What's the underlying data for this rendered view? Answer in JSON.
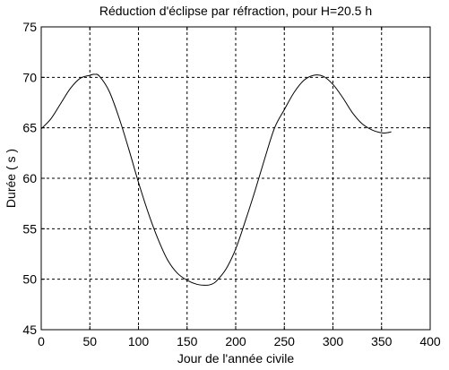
{
  "chart_data": {
    "type": "line",
    "title": "Réduction d'éclipse par réfraction, pour H=20.5 h",
    "xlabel": "Jour de l'année civile",
    "ylabel": "Durée ( s )",
    "xlim": [
      0,
      400
    ],
    "ylim": [
      45,
      75
    ],
    "xticks": [
      0,
      50,
      100,
      150,
      200,
      250,
      300,
      350,
      400
    ],
    "yticks": [
      45,
      50,
      55,
      60,
      65,
      70,
      75
    ],
    "grid": true,
    "series": [
      {
        "color": "#000000",
        "x": [
          0,
          10,
          20,
          30,
          40,
          50,
          55,
          60,
          70,
          80,
          90,
          100,
          110,
          120,
          130,
          140,
          150,
          160,
          170,
          175,
          180,
          190,
          200,
          210,
          220,
          230,
          240,
          250,
          260,
          270,
          280,
          290,
          300,
          310,
          320,
          330,
          340,
          350,
          355,
          360
        ],
        "y": [
          64.9,
          65.9,
          67.4,
          68.9,
          69.9,
          70.2,
          70.3,
          70.1,
          68.6,
          66.0,
          62.9,
          59.6,
          56.6,
          54.0,
          51.9,
          50.6,
          49.9,
          49.5,
          49.4,
          49.5,
          49.8,
          51.0,
          53.0,
          55.8,
          58.8,
          62.0,
          65.0,
          66.8,
          68.5,
          69.7,
          70.2,
          70.1,
          69.3,
          68.0,
          66.5,
          65.4,
          64.8,
          64.5,
          64.5,
          64.6
        ]
      }
    ]
  }
}
